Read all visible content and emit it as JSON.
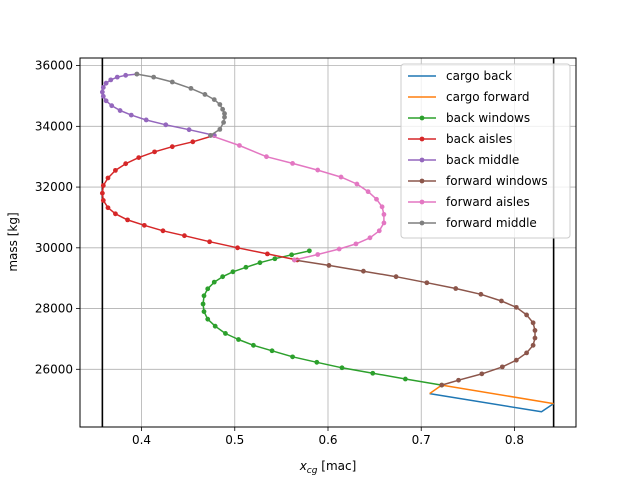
{
  "chart_data": {
    "type": "line",
    "title": "",
    "xlabel_main": "x",
    "xlabel_sub": "cg",
    "xlabel_unit": " [mac]",
    "ylabel": "mass [kg]",
    "xlim": [
      0.334,
      0.866
    ],
    "ylim": [
      24100,
      36250
    ],
    "xticks": [
      0.4,
      0.5,
      0.6,
      0.7,
      0.8
    ],
    "xtick_labels": [
      "0.4",
      "0.5",
      "0.6",
      "0.7",
      "0.8"
    ],
    "yticks": [
      26000,
      28000,
      30000,
      32000,
      34000,
      36000
    ],
    "ytick_labels": [
      "26000",
      "28000",
      "30000",
      "32000",
      "34000",
      "36000"
    ],
    "grid": true,
    "legend_position": "upper-right",
    "limit_lines": [
      0.358,
      0.842
    ],
    "limit_line_color": "#000000",
    "series": [
      {
        "name": "cargo back",
        "color": "#1f77b4",
        "marker": false,
        "x": [
          0.709,
          0.829,
          0.842
        ],
        "y": [
          25200,
          24600,
          24870
        ]
      },
      {
        "name": "cargo forward",
        "color": "#ff7f0e",
        "marker": false,
        "x": [
          0.709,
          0.722,
          0.842
        ],
        "y": [
          25200,
          25480,
          24870
        ]
      },
      {
        "name": "back windows",
        "color": "#2ca02c",
        "marker": true,
        "x": [
          0.722,
          0.683,
          0.648,
          0.615,
          0.588,
          0.562,
          0.54,
          0.52,
          0.504,
          0.49,
          0.479,
          0.471,
          0.467,
          0.466,
          0.467,
          0.471,
          0.478,
          0.487,
          0.498,
          0.512,
          0.527,
          0.543,
          0.561,
          0.58
        ],
        "y": [
          25480,
          25680,
          25870,
          26050,
          26230,
          26410,
          26610,
          26790,
          26980,
          27180,
          27420,
          27650,
          27900,
          28150,
          28420,
          28650,
          28870,
          29050,
          29210,
          29360,
          29510,
          29640,
          29770,
          29900
        ]
      },
      {
        "name": "back aisles",
        "color": "#d62728",
        "marker": true,
        "x": [
          0.567,
          0.535,
          0.503,
          0.473,
          0.446,
          0.423,
          0.403,
          0.385,
          0.372,
          0.364,
          0.359,
          0.358,
          0.359,
          0.364,
          0.372,
          0.383,
          0.397,
          0.414,
          0.433,
          0.455,
          0.478
        ],
        "y": [
          29600,
          29800,
          30000,
          30200,
          30400,
          30560,
          30740,
          30920,
          31120,
          31320,
          31560,
          31800,
          32050,
          32300,
          32550,
          32770,
          32970,
          33160,
          33330,
          33490,
          33700
        ]
      },
      {
        "name": "back middle",
        "color": "#9467bd",
        "marker": true,
        "x": [
          0.478,
          0.451,
          0.426,
          0.405,
          0.389,
          0.377,
          0.368,
          0.362,
          0.359,
          0.358,
          0.359,
          0.362,
          0.367,
          0.374,
          0.383,
          0.395
        ],
        "y": [
          33700,
          33890,
          34050,
          34210,
          34370,
          34520,
          34680,
          34840,
          34990,
          35130,
          35280,
          35420,
          35530,
          35620,
          35680,
          35720
        ]
      },
      {
        "name": "forward windows",
        "color": "#8c564b",
        "marker": true,
        "x": [
          0.722,
          0.74,
          0.765,
          0.787,
          0.802,
          0.813,
          0.82,
          0.822,
          0.822,
          0.82,
          0.813,
          0.802,
          0.786,
          0.764,
          0.737,
          0.706,
          0.673,
          0.638,
          0.601,
          0.564
        ],
        "y": [
          25480,
          25640,
          25850,
          26080,
          26300,
          26540,
          26790,
          27030,
          27280,
          27530,
          27790,
          28040,
          28250,
          28470,
          28660,
          28850,
          29050,
          29230,
          29420,
          29600
        ]
      },
      {
        "name": "forward aisles",
        "color": "#e377c2",
        "marker": true,
        "x": [
          0.564,
          0.589,
          0.612,
          0.63,
          0.645,
          0.655,
          0.66,
          0.66,
          0.658,
          0.652,
          0.643,
          0.631,
          0.614,
          0.589,
          0.562,
          0.534,
          0.505,
          0.474
        ],
        "y": [
          29600,
          29780,
          29960,
          30130,
          30330,
          30560,
          30820,
          31100,
          31350,
          31600,
          31850,
          32100,
          32330,
          32560,
          32780,
          33000,
          33370,
          33700
        ]
      },
      {
        "name": "forward middle",
        "color": "#7f7f7f",
        "marker": true,
        "x": [
          0.474,
          0.484,
          0.488,
          0.489,
          0.489,
          0.487,
          0.484,
          0.478,
          0.468,
          0.453,
          0.433,
          0.413,
          0.395
        ],
        "y": [
          33700,
          33900,
          34130,
          34300,
          34420,
          34560,
          34720,
          34880,
          35050,
          35250,
          35460,
          35620,
          35720
        ]
      }
    ]
  }
}
